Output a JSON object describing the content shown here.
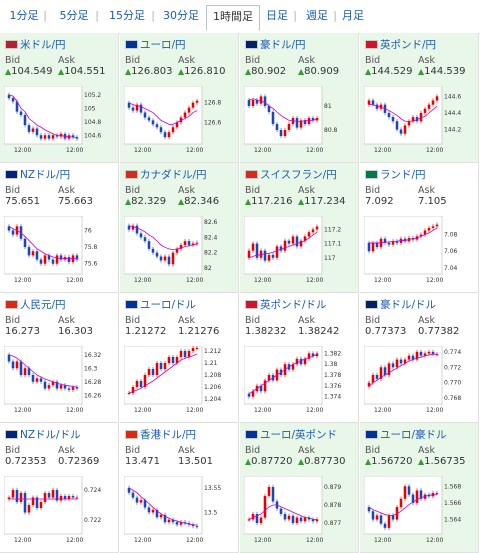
{
  "tabs": [
    {
      "label": "1分足",
      "active": false
    },
    {
      "label": "5分足",
      "active": false
    },
    {
      "label": "15分足",
      "active": false
    },
    {
      "label": "30分足",
      "active": false
    },
    {
      "label": "1時間足",
      "active": true
    },
    {
      "label": "日足",
      "active": false
    },
    {
      "label": "週足",
      "active": false
    },
    {
      "label": "月足",
      "active": false
    }
  ],
  "labels": {
    "bid": "Bid",
    "ask": "Ask"
  },
  "colors": {
    "up_bg": "#e9f7e8",
    "candle_up": "#e60000",
    "candle_down": "#1a46b8",
    "ma": "#cc00cc",
    "link": "#1a5bb5"
  },
  "panels": [
    {
      "name": "米ドル/円",
      "flag": "us",
      "bid": "104.549",
      "ask": "104.551",
      "arrow": true,
      "bg": "up",
      "x_tick": "12:00",
      "yticks": [
        "105.2",
        "105",
        "104.8",
        "104.6"
      ],
      "ylim": [
        104.5,
        105.3
      ],
      "x_end": "12:00",
      "trend": [
        105.15,
        105.1,
        104.95,
        104.9,
        104.75,
        104.65,
        104.7,
        104.6,
        104.55,
        104.6,
        104.55,
        104.6,
        104.58,
        104.62,
        104.55,
        104.6,
        104.57,
        104.55
      ],
      "ma": [
        105.2,
        105.18,
        105.1,
        105.0,
        104.95,
        104.85,
        104.8,
        104.75,
        104.72,
        104.68,
        104.65,
        104.62,
        104.6,
        104.6,
        104.58,
        104.58,
        104.57,
        104.57
      ]
    },
    {
      "name": "ユーロ/円",
      "flag": "eu",
      "bid": "126.803",
      "ask": "126.810",
      "arrow": true,
      "bg": "up",
      "x_tick": "12:00",
      "yticks": [
        "126.8",
        "126.6"
      ],
      "ylim": [
        126.4,
        126.95
      ],
      "x_end": "12:00",
      "trend": [
        126.75,
        126.72,
        126.78,
        126.7,
        126.65,
        126.62,
        126.58,
        126.55,
        126.5,
        126.45,
        126.5,
        126.55,
        126.6,
        126.65,
        126.7,
        126.75,
        126.8,
        126.82
      ],
      "ma": [
        126.8,
        126.78,
        126.77,
        126.76,
        126.74,
        126.72,
        126.7,
        126.66,
        126.62,
        126.6,
        126.58,
        126.58,
        126.6,
        126.62,
        126.64,
        126.66,
        126.7,
        126.72
      ]
    },
    {
      "name": "豪ドル/円",
      "flag": "au",
      "bid": "80.902",
      "ask": "80.909",
      "arrow": true,
      "bg": "up",
      "x_tick": "12:00",
      "yticks": [
        "81",
        "80.8"
      ],
      "ylim": [
        80.7,
        81.15
      ],
      "x_end": "12:00",
      "trend": [
        81.0,
        81.05,
        81.02,
        81.08,
        81.0,
        80.95,
        80.85,
        80.8,
        80.75,
        80.8,
        80.85,
        80.9,
        80.82,
        80.88,
        80.85,
        80.9,
        80.88,
        80.9
      ],
      "ma": [
        81.05,
        81.06,
        81.05,
        81.04,
        81.03,
        81.0,
        80.98,
        80.95,
        80.92,
        80.9,
        80.88,
        80.88,
        80.87,
        80.87,
        80.88,
        80.88,
        80.88,
        80.89
      ]
    },
    {
      "name": "英ポンド/円",
      "flag": "uk",
      "bid": "144.529",
      "ask": "144.539",
      "arrow": true,
      "bg": "up",
      "x_tick": "12:00",
      "yticks": [
        "144.6",
        "144.4",
        "144.2"
      ],
      "ylim": [
        144.05,
        144.7
      ],
      "x_end": "12:00",
      "trend": [
        144.55,
        144.5,
        144.45,
        144.5,
        144.4,
        144.35,
        144.3,
        144.2,
        144.15,
        144.25,
        144.3,
        144.35,
        144.3,
        144.4,
        144.45,
        144.5,
        144.55,
        144.6
      ],
      "ma": [
        144.5,
        144.5,
        144.48,
        144.47,
        144.45,
        144.43,
        144.4,
        144.37,
        144.33,
        144.3,
        144.3,
        144.3,
        144.32,
        144.34,
        144.36,
        144.4,
        144.44,
        144.48
      ]
    },
    {
      "name": "NZドル/円",
      "flag": "nz",
      "bid": "75.651",
      "ask": "75.663",
      "arrow": false,
      "bg": "down",
      "x_tick": "12:00",
      "yticks": [
        "76",
        "75.8",
        "75.6"
      ],
      "ylim": [
        75.5,
        76.15
      ],
      "x_end": "12:00",
      "trend": [
        76.0,
        75.95,
        76.05,
        75.9,
        75.8,
        75.7,
        75.75,
        75.65,
        75.6,
        75.7,
        75.65,
        75.6,
        75.7,
        75.65,
        75.68,
        75.62,
        75.7,
        75.65
      ],
      "ma": [
        76.05,
        76.02,
        76.0,
        75.97,
        75.93,
        75.88,
        75.83,
        75.78,
        75.75,
        75.72,
        75.7,
        75.68,
        75.67,
        75.66,
        75.66,
        75.66,
        75.66,
        75.66
      ]
    },
    {
      "name": "カナダドル/円",
      "flag": "ca",
      "bid": "82.329",
      "ask": "82.346",
      "arrow": true,
      "bg": "up",
      "x_tick": "12:00",
      "yticks": [
        "82.6",
        "82.4",
        "82.2",
        "82"
      ],
      "ylim": [
        81.95,
        82.65
      ],
      "x_end": "12:00",
      "trend": [
        82.5,
        82.55,
        82.45,
        82.4,
        82.35,
        82.25,
        82.2,
        82.15,
        82.1,
        82.15,
        82.05,
        82.2,
        82.25,
        82.3,
        82.35,
        82.3,
        82.32,
        82.33
      ],
      "ma": [
        82.55,
        82.54,
        82.52,
        82.5,
        82.47,
        82.43,
        82.4,
        82.35,
        82.3,
        82.27,
        82.25,
        82.24,
        82.25,
        82.26,
        82.28,
        82.29,
        82.3,
        82.31
      ]
    },
    {
      "name": "スイスフラン/円",
      "flag": "ch",
      "bid": "117.216",
      "ask": "117.234",
      "arrow": true,
      "bg": "up",
      "x_tick": "12:00",
      "yticks": [
        "117.2",
        "117.1",
        "117"
      ],
      "ylim": [
        116.9,
        117.28
      ],
      "x_end": "12:00",
      "trend": [
        117.05,
        117.1,
        117.0,
        117.05,
        116.98,
        117.02,
        117.0,
        117.08,
        117.05,
        117.12,
        117.1,
        117.15,
        117.08,
        117.12,
        117.15,
        117.18,
        117.2,
        117.22
      ],
      "ma": [
        117.0,
        117.01,
        117.02,
        117.02,
        117.03,
        117.03,
        117.04,
        117.05,
        117.06,
        117.07,
        117.08,
        117.09,
        117.1,
        117.11,
        117.12,
        117.14,
        117.16,
        117.18
      ]
    },
    {
      "name": "ランド/円",
      "flag": "za",
      "bid": "7.092",
      "ask": "7.105",
      "arrow": false,
      "bg": "down",
      "x_tick": "12:00",
      "yticks": [
        "7.08",
        "7.06",
        "7.04"
      ],
      "ylim": [
        7.035,
        7.1
      ],
      "x_end": "12:00",
      "trend": [
        7.06,
        7.07,
        7.065,
        7.075,
        7.07,
        7.068,
        7.072,
        7.07,
        7.075,
        7.072,
        7.076,
        7.074,
        7.078,
        7.08,
        7.085,
        7.088,
        7.09,
        7.092
      ],
      "ma": [
        7.07,
        7.07,
        7.07,
        7.07,
        7.071,
        7.071,
        7.072,
        7.072,
        7.073,
        7.073,
        7.074,
        7.075,
        7.076,
        7.078,
        7.08,
        7.082,
        7.085,
        7.088
      ]
    },
    {
      "name": "人民元/円",
      "flag": "cn",
      "bid": "16.273",
      "ask": "16.303",
      "arrow": false,
      "bg": "down",
      "x_tick": "12:00",
      "yticks": [
        "16.32",
        "16.3",
        "16.28",
        "16.26"
      ],
      "ylim": [
        16.25,
        16.33
      ],
      "x_end": "12:00",
      "trend": [
        16.31,
        16.3,
        16.31,
        16.29,
        16.3,
        16.29,
        16.28,
        16.285,
        16.28,
        16.27,
        16.275,
        16.28,
        16.27,
        16.275,
        16.27,
        16.268,
        16.272,
        16.27
      ],
      "ma": [
        16.32,
        16.318,
        16.315,
        16.31,
        16.305,
        16.3,
        16.295,
        16.29,
        16.287,
        16.284,
        16.282,
        16.28,
        16.278,
        16.276,
        16.275,
        16.274,
        16.273,
        16.272
      ]
    },
    {
      "name": "ユーロ/ドル",
      "flag": "eu",
      "bid": "1.21272",
      "ask": "1.21276",
      "arrow": false,
      "bg": "down",
      "x_tick": "12:00",
      "yticks": [
        "1.212",
        "1.21",
        "1.208",
        "1.206",
        "1.204"
      ],
      "ylim": [
        1.2035,
        1.2125
      ],
      "x_end": "12:00",
      "trend": [
        1.205,
        1.206,
        1.207,
        1.206,
        1.208,
        1.209,
        1.208,
        1.21,
        1.209,
        1.21,
        1.211,
        1.21,
        1.211,
        1.212,
        1.211,
        1.212,
        1.2125,
        1.2125
      ],
      "ma": [
        1.205,
        1.2052,
        1.2055,
        1.2058,
        1.2062,
        1.2066,
        1.207,
        1.2075,
        1.208,
        1.2085,
        1.209,
        1.2095,
        1.21,
        1.2105,
        1.2108,
        1.211,
        1.2112,
        1.2115
      ]
    },
    {
      "name": "英ポンド/ドル",
      "flag": "uk",
      "bid": "1.38232",
      "ask": "1.38242",
      "arrow": false,
      "bg": "down",
      "x_tick": "12:00",
      "yticks": [
        "1.382",
        "1.38",
        "1.378",
        "1.376",
        "1.374"
      ],
      "ylim": [
        1.373,
        1.383
      ],
      "x_end": "12:00",
      "trend": [
        1.374,
        1.375,
        1.376,
        1.375,
        1.377,
        1.378,
        1.377,
        1.379,
        1.378,
        1.38,
        1.379,
        1.38,
        1.381,
        1.38,
        1.381,
        1.382,
        1.3815,
        1.382
      ],
      "ma": [
        1.3745,
        1.375,
        1.3755,
        1.376,
        1.3765,
        1.377,
        1.3775,
        1.378,
        1.3785,
        1.379,
        1.3795,
        1.38,
        1.3803,
        1.3806,
        1.381,
        1.3812,
        1.3815,
        1.3818
      ]
    },
    {
      "name": "豪ドル/ドル",
      "flag": "au",
      "bid": "0.77373",
      "ask": "0.77382",
      "arrow": false,
      "bg": "down",
      "x_tick": "12:00",
      "yticks": [
        "0.774",
        "0.772",
        "0.770",
        "0.768"
      ],
      "ylim": [
        0.7675,
        0.7745
      ],
      "x_end": "12:00",
      "trend": [
        0.77,
        0.771,
        0.7705,
        0.772,
        0.771,
        0.7725,
        0.772,
        0.773,
        0.7725,
        0.773,
        0.7735,
        0.773,
        0.774,
        0.7735,
        0.7738,
        0.774,
        0.7737,
        0.7737
      ],
      "ma": [
        0.7695,
        0.77,
        0.7703,
        0.7707,
        0.771,
        0.7713,
        0.7716,
        0.7719,
        0.7722,
        0.7725,
        0.7728,
        0.773,
        0.7732,
        0.7733,
        0.7735,
        0.7736,
        0.7737,
        0.7737
      ]
    },
    {
      "name": "NZドル/ドル",
      "flag": "nz",
      "bid": "0.72353",
      "ask": "0.72369",
      "arrow": false,
      "bg": "down",
      "x_tick": "12:00",
      "yticks": [
        "0.724",
        "0.722"
      ],
      "ylim": [
        0.7212,
        0.7248
      ],
      "x_end": "12:00",
      "trend": [
        0.7235,
        0.724,
        0.7232,
        0.7238,
        0.7225,
        0.723,
        0.7235,
        0.7228,
        0.7232,
        0.7238,
        0.7235,
        0.724,
        0.7233,
        0.7236,
        0.7234,
        0.7236,
        0.7235,
        0.7235
      ],
      "ma": [
        0.7234,
        0.7234,
        0.7234,
        0.7234,
        0.7234,
        0.7234,
        0.7234,
        0.7234,
        0.7234,
        0.7234,
        0.7234,
        0.7234,
        0.7234,
        0.7234,
        0.7234,
        0.7234,
        0.7234,
        0.7234
      ]
    },
    {
      "name": "香港ドル/円",
      "flag": "hk",
      "bid": "13.471",
      "ask": "13.501",
      "arrow": false,
      "bg": "down",
      "x_tick": "12:00",
      "yticks": [
        "13.55",
        "13.5"
      ],
      "ylim": [
        13.46,
        13.57
      ],
      "x_end": "12:00",
      "trend": [
        13.54,
        13.53,
        13.52,
        13.525,
        13.51,
        13.5,
        13.505,
        13.49,
        13.495,
        13.48,
        13.485,
        13.48,
        13.475,
        13.48,
        13.478,
        13.475,
        13.472,
        13.471
      ],
      "ma": [
        13.55,
        13.545,
        13.54,
        13.532,
        13.525,
        13.518,
        13.51,
        13.503,
        13.497,
        13.492,
        13.488,
        13.485,
        13.482,
        13.48,
        13.478,
        13.476,
        13.475,
        13.474
      ]
    },
    {
      "name": "ユーロ/英ポンド",
      "flag": "eu",
      "bid": "0.87720",
      "ask": "0.87730",
      "arrow": true,
      "bg": "up",
      "x_tick": "12:00",
      "yticks": [
        "0.879",
        "0.878",
        "0.877"
      ],
      "ylim": [
        0.8765,
        0.8795
      ],
      "x_end": "12:00",
      "trend": [
        0.8772,
        0.8775,
        0.877,
        0.8773,
        0.8785,
        0.879,
        0.8782,
        0.8778,
        0.8775,
        0.8772,
        0.8774,
        0.877,
        0.8773,
        0.8771,
        0.8773,
        0.8772,
        0.8771,
        0.8772
      ],
      "ma": [
        0.8772,
        0.8773,
        0.8774,
        0.8775,
        0.8777,
        0.8779,
        0.878,
        0.878,
        0.8779,
        0.8778,
        0.8777,
        0.8776,
        0.8775,
        0.8774,
        0.8773,
        0.8773,
        0.8772,
        0.8772
      ]
    },
    {
      "name": "ユーロ/豪ドル",
      "flag": "eu",
      "bid": "1.56720",
      "ask": "1.56735",
      "arrow": true,
      "bg": "up",
      "x_tick": "12:00",
      "yticks": [
        "1.568",
        "1.566",
        "1.564"
      ],
      "ylim": [
        1.5625,
        1.569
      ],
      "x_end": "12:00",
      "trend": [
        1.565,
        1.564,
        1.5645,
        1.5635,
        1.563,
        1.5645,
        1.564,
        1.5655,
        1.5665,
        1.568,
        1.567,
        1.566,
        1.5675,
        1.5665,
        1.567,
        1.5668,
        1.5672,
        1.5672
      ],
      "ma": [
        1.5655,
        1.5652,
        1.565,
        1.5648,
        1.5646,
        1.5645,
        1.5645,
        1.5647,
        1.565,
        1.5654,
        1.5658,
        1.5661,
        1.5664,
        1.5666,
        1.5668,
        1.5669,
        1.567,
        1.567
      ]
    }
  ]
}
